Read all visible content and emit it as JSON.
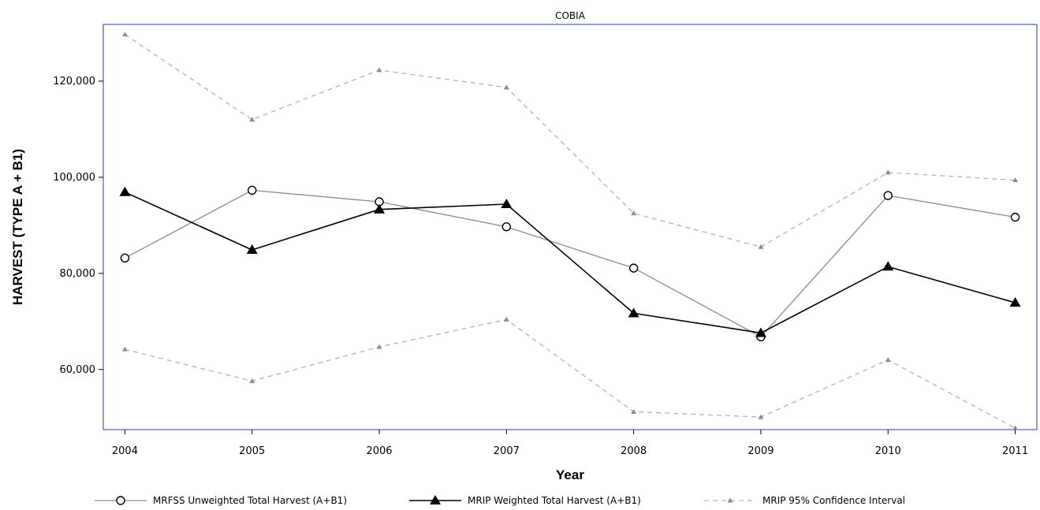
{
  "chart_data": {
    "type": "line",
    "title": "COBIA",
    "xlabel": "Year",
    "ylabel": "HARVEST (TYPE A + B1)",
    "categories": [
      "2004",
      "2005",
      "2006",
      "2007",
      "2008",
      "2009",
      "2010",
      "2011"
    ],
    "x": [
      2004,
      2005,
      2006,
      2007,
      2008,
      2009,
      2010,
      2011
    ],
    "xlim": [
      2003.83,
      2011.17
    ],
    "ylim": [
      47500,
      131800
    ],
    "yticks": [
      60000,
      80000,
      100000,
      120000
    ],
    "ytick_labels": [
      "60,000",
      "80,000",
      "100,000",
      "120,000"
    ],
    "grid": false,
    "legend_position": "bottom",
    "series": [
      {
        "name": "MRFSS Unweighted Total Harvest (A+B1)",
        "role": "mrfss",
        "marker": "open-circle",
        "line_style": "solid",
        "color": "#8c8c8c",
        "marker_color": "#000000",
        "values": [
          83200,
          97300,
          94900,
          89700,
          81100,
          66800,
          96200,
          91700
        ]
      },
      {
        "name": "MRIP Weighted Total Harvest (A+B1)",
        "role": "mrip",
        "marker": "filled-triangle",
        "line_style": "solid",
        "color": "#000000",
        "marker_color": "#000000",
        "values": [
          96900,
          84900,
          93300,
          94400,
          71700,
          67600,
          81400,
          73900
        ]
      },
      {
        "name": "MRIP 95% Confidence Interval",
        "role": "ci-upper",
        "marker": "small-triangle",
        "line_style": "dashed",
        "color": "#b4b4b4",
        "marker_color": "#8c8c8c",
        "values": [
          129700,
          112000,
          122300,
          118700,
          92500,
          85500,
          101000,
          99400
        ]
      },
      {
        "name": "MRIP 95% Confidence Interval",
        "role": "ci-lower",
        "marker": "small-triangle",
        "line_style": "dashed",
        "color": "#b4b4b4",
        "marker_color": "#8c8c8c",
        "values": [
          64200,
          57600,
          64700,
          70400,
          51200,
          50100,
          62000,
          47800
        ]
      }
    ],
    "colors": {
      "frame": "#2b3c9c",
      "axis": "#000000"
    }
  }
}
